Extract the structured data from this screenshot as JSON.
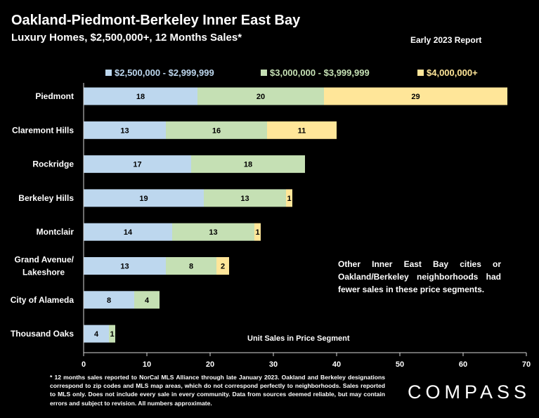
{
  "header": {
    "title": "Oakland-Piedmont-Berkeley Inner East Bay",
    "subtitle": "Luxury Homes, $2,500,000+, 12 Months Sales*",
    "report": "Early 2023 Report"
  },
  "colors": {
    "background": "#000000",
    "seg1": "#bdd7ee",
    "seg2": "#c5e0b4",
    "seg3": "#ffe699",
    "axis": "#ffffff",
    "text": "#ffffff"
  },
  "chart_data": {
    "type": "bar",
    "orientation": "horizontal",
    "stacked": true,
    "categories": [
      "Piedmont",
      "Claremont Hills",
      "Rockridge",
      "Berkeley Hills",
      "Montclair",
      "Grand Avenue/ Lakeshore",
      "City of Alameda",
      "Thousand Oaks"
    ],
    "series": [
      {
        "name": "$2,500,000 - $2,999,999",
        "color": "#bdd7ee",
        "values": [
          18,
          13,
          17,
          19,
          14,
          13,
          8,
          4
        ]
      },
      {
        "name": "$3,000,000 - $3,999,999",
        "color": "#c5e0b4",
        "values": [
          20,
          16,
          18,
          13,
          13,
          8,
          4,
          1
        ]
      },
      {
        "name": "$4,000,000+",
        "color": "#ffe699",
        "values": [
          29,
          11,
          0,
          1,
          1,
          2,
          0,
          0
        ]
      }
    ],
    "xlabel": "Unit Sales in Price Segment",
    "xlim": [
      0,
      70
    ],
    "xticks": [
      0,
      10,
      20,
      30,
      40,
      50,
      60,
      70
    ],
    "legend_position": "top",
    "grid": false
  },
  "annotation": "Other Inner East Bay cities or Oakland/Berkeley neighborhoods had fewer sales in these price segments.",
  "footnote": "* 12 months sales reported to NorCal MLS Alliance through late January 2023. Oakland and Berkeley designations correspond to zip codes and MLS map areas, which do not correspond perfectly to neighborhoods. Sales reported to MLS only. Does not include every sale in every community. Data from sources deemed reliable, but may contain errors and subject to revision. All numbers approximate.",
  "logo": "COMPASS"
}
